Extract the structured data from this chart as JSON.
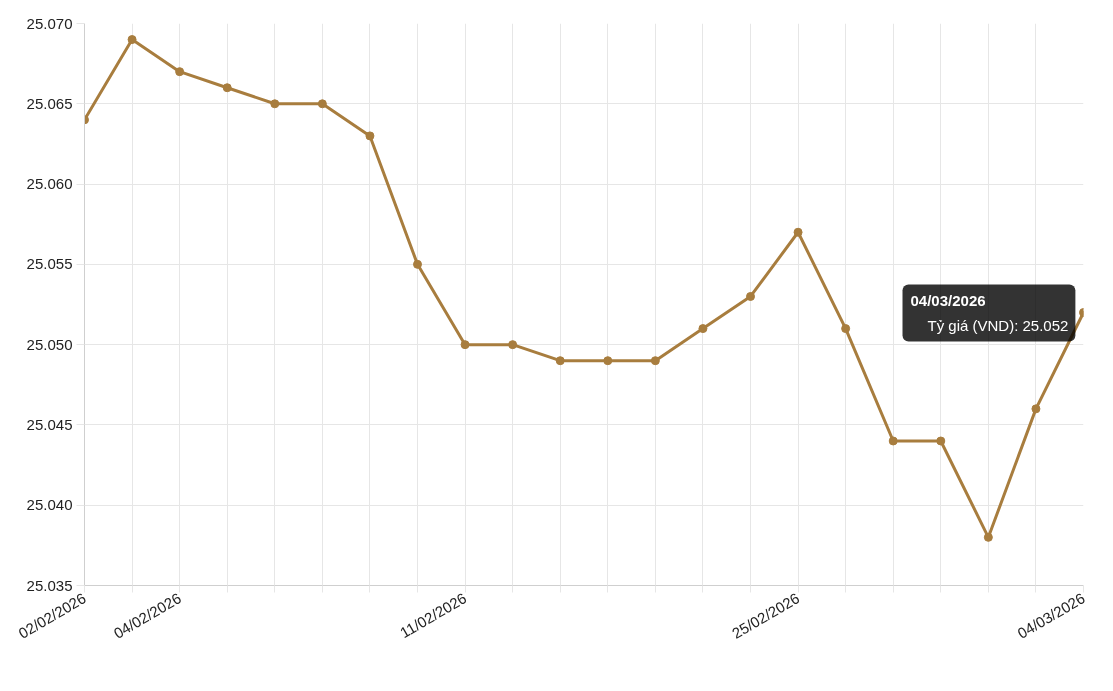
{
  "chart_data": {
    "type": "line",
    "categories": [
      "02/02/2026",
      null,
      "04/02/2026",
      null,
      null,
      null,
      null,
      null,
      "11/02/2026",
      null,
      null,
      null,
      null,
      null,
      null,
      "25/02/2026",
      null,
      null,
      null,
      null,
      null,
      "04/03/2026"
    ],
    "series": [
      {
        "color": "#a87d3e",
        "values": [
          25.064,
          25.069,
          25.067,
          25.066,
          25.065,
          25.065,
          25.063,
          25.055,
          25.05,
          25.05,
          25.049,
          25.049,
          25.049,
          25.051,
          25.053,
          25.057,
          25.051,
          25.044,
          25.044,
          25.038,
          25.046,
          25.052
        ]
      }
    ],
    "ylim": [
      25.035,
      25.07
    ],
    "yticks": [
      {
        "value": 25.035,
        "label": "25.035"
      },
      {
        "value": 25.04,
        "label": "25.040"
      },
      {
        "value": 25.045,
        "label": "25.045"
      },
      {
        "value": 25.05,
        "label": "25.050"
      },
      {
        "value": 25.055,
        "label": "25.055"
      },
      {
        "value": 25.06,
        "label": "25.060"
      },
      {
        "value": 25.065,
        "label": "25.065"
      },
      {
        "value": 25.07,
        "label": "25.070"
      }
    ],
    "grid": true,
    "marker": "circle",
    "line_style": "solid",
    "annotations": [
      "04/03/2026",
      "Tỷ giá (VND): 25.052"
    ]
  }
}
